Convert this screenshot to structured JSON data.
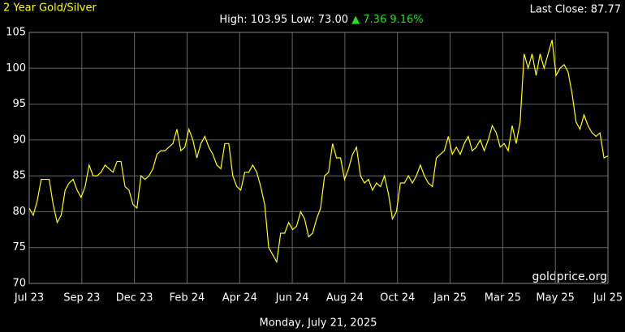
{
  "chart_data": {
    "type": "line",
    "title": "2 Year Gold/Silver",
    "stats": {
      "high": "High: 103.95",
      "low": "Low: 73.00",
      "change": "▲ 7.36 9.16%"
    },
    "last_close": "Last Close: 87.77",
    "watermark": "goldprice.org",
    "date": "Monday, July 21, 2025",
    "color": "#ffff00",
    "grid": true,
    "x": [
      0,
      1,
      2,
      3,
      4,
      5,
      6,
      7,
      8,
      9,
      10,
      11,
      12,
      13,
      14,
      15,
      16,
      17,
      18,
      19,
      20,
      21,
      22,
      23,
      24,
      25,
      26,
      27,
      28,
      29,
      30,
      31,
      32,
      33,
      34,
      35,
      36,
      37,
      38,
      39,
      40,
      41,
      42,
      43,
      44,
      45,
      46,
      47,
      48,
      49,
      50,
      51,
      52,
      53,
      54,
      55,
      56,
      57,
      58,
      59,
      60,
      61,
      62,
      63,
      64,
      65,
      66,
      67,
      68,
      69,
      70,
      71,
      72,
      73,
      74,
      75,
      76,
      77,
      78,
      79,
      80,
      81,
      82,
      83,
      84,
      85,
      86,
      87,
      88,
      89,
      90,
      91,
      92,
      93,
      94,
      95,
      96,
      97,
      98,
      99,
      100,
      101,
      102,
      103,
      104,
      105,
      106,
      107,
      108,
      109,
      110,
      111,
      112,
      113,
      114,
      115,
      116,
      117,
      118,
      119,
      120,
      121,
      122,
      123,
      124,
      125,
      126,
      127,
      128,
      129,
      130,
      131,
      132,
      133,
      134,
      135,
      136,
      137,
      138,
      139,
      140,
      141,
      142,
      143,
      144,
      145
    ],
    "values": [
      80.5,
      79.5,
      81.5,
      84.5,
      84.5,
      84.5,
      81,
      78.5,
      79.5,
      83,
      84,
      84.5,
      83,
      82,
      83.5,
      86.5,
      85,
      85,
      85.5,
      86.5,
      86,
      85.5,
      87,
      87,
      83.5,
      83,
      81,
      80.5,
      85,
      84.5,
      85,
      86,
      88,
      88.5,
      88.5,
      89,
      89.5,
      91.5,
      88.5,
      89,
      91.5,
      90,
      87.5,
      89.5,
      90.5,
      89,
      88,
      86.5,
      86,
      89.5,
      89.5,
      85,
      83.5,
      83,
      85.5,
      85.5,
      86.5,
      85.5,
      83.5,
      81,
      75,
      74,
      73,
      77,
      77,
      78.5,
      77.5,
      78,
      80,
      79,
      76.5,
      77,
      79,
      80.5,
      85,
      85.5,
      89.5,
      87.5,
      87.5,
      84.5,
      86,
      88,
      89,
      85,
      84,
      84.5,
      83,
      84,
      83.5,
      85,
      82.5,
      79,
      80,
      84,
      84,
      85,
      84,
      85,
      86.5,
      85,
      84,
      83.5,
      87.5,
      88,
      88.5,
      90.5,
      88,
      89,
      88,
      89.5,
      90.5,
      88.5,
      89,
      90,
      88.5,
      90,
      92,
      91,
      89,
      89.5,
      88.5,
      92,
      89.5,
      92.5,
      102,
      100,
      102,
      99,
      102,
      100,
      102,
      103.95,
      99,
      100,
      100.5,
      99.5,
      96.5,
      92.5,
      91.5,
      93.5,
      92,
      91,
      90.5,
      91,
      87.5,
      87.77
    ],
    "xlim": [
      0,
      145
    ],
    "xticks": [
      {
        "value": 0,
        "label": "Jul 23"
      },
      {
        "value": 13.18,
        "label": "Sep 23"
      },
      {
        "value": 26.36,
        "label": "Dec 23"
      },
      {
        "value": 39.55,
        "label": "Feb 24"
      },
      {
        "value": 52.73,
        "label": "Apr 24"
      },
      {
        "value": 65.91,
        "label": "Jun 24"
      },
      {
        "value": 79.09,
        "label": "Aug 24"
      },
      {
        "value": 92.27,
        "label": "Oct 24"
      },
      {
        "value": 105.45,
        "label": "Jan 25"
      },
      {
        "value": 118.64,
        "label": "Mar 25"
      },
      {
        "value": 131.82,
        "label": "May 25"
      },
      {
        "value": 145,
        "label": "Jul 25"
      }
    ],
    "ylim": [
      70,
      105
    ],
    "yticks": [
      70,
      75,
      80,
      85,
      90,
      95,
      100,
      105
    ]
  }
}
